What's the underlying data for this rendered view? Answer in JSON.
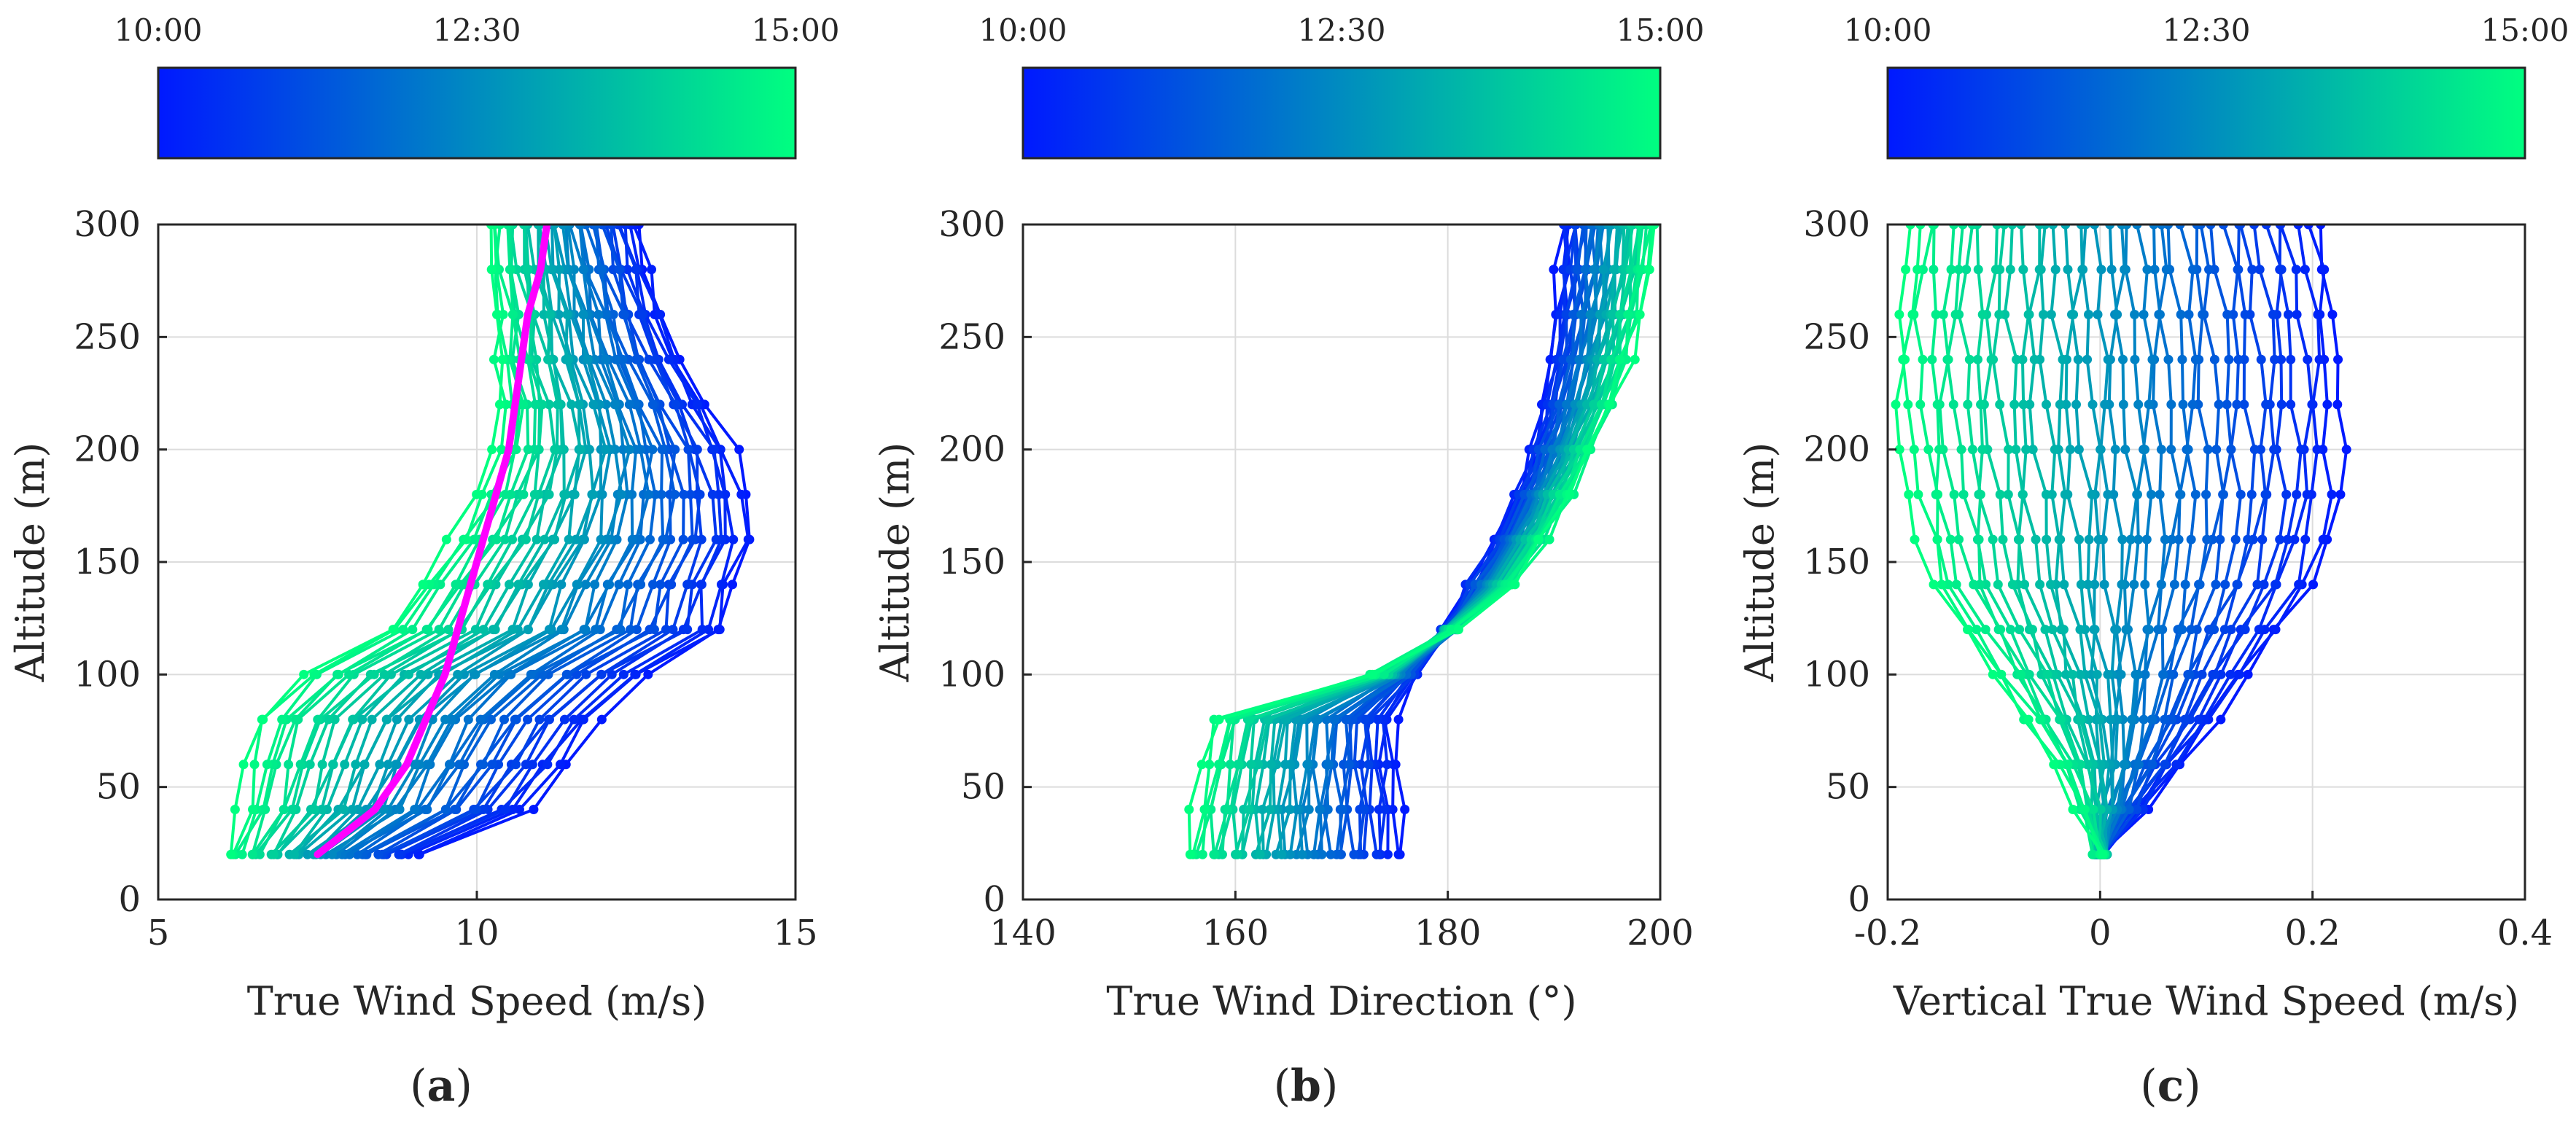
{
  "figure": {
    "colorbar": {
      "start_label": "10:00",
      "mid_label": "12:30",
      "end_label": "15:00",
      "color_start": "#0019ff",
      "color_end": "#00ff80"
    },
    "panels": [
      {
        "id": "a",
        "label_open": "(",
        "label_letter": "a",
        "label_close": ")"
      },
      {
        "id": "b",
        "label_open": "(",
        "label_letter": "b",
        "label_close": ")"
      },
      {
        "id": "c",
        "label_open": "(",
        "label_letter": "c",
        "label_close": ")"
      }
    ]
  },
  "chart_data": [
    {
      "type": "line",
      "panel": "a",
      "title": "",
      "xlabel": "True Wind Speed (m/s)",
      "ylabel": "Altitude (m)",
      "xlim": [
        5,
        15
      ],
      "ylim": [
        0,
        300
      ],
      "xticks": [
        "5",
        "10",
        "15"
      ],
      "yticks": [
        "0",
        "50",
        "100",
        "150",
        "200",
        "250",
        "300"
      ],
      "grid": true,
      "colorbar": {
        "label_start": "10:00",
        "label_mid": "12:30",
        "label_end": "15:00"
      },
      "altitudes": [
        20,
        40,
        60,
        80,
        100,
        120,
        140,
        160,
        180,
        200,
        220,
        240,
        260,
        280,
        300
      ],
      "profile_count": 40,
      "profile_time_range": [
        "10:00",
        "15:00"
      ],
      "profile_envelope": {
        "earliest": [
          9.1,
          10.8,
          11.4,
          11.9,
          12.7,
          13.9,
          14.0,
          14.3,
          14.2,
          14.0,
          13.6,
          13.2,
          12.9,
          12.7,
          12.5
        ],
        "latest": [
          6.1,
          6.3,
          6.4,
          6.6,
          7.3,
          8.6,
          9.1,
          9.6,
          10.0,
          10.3,
          10.4,
          10.3,
          10.3,
          10.2,
          10.2
        ]
      },
      "series": [
        {
          "name": "mean profile",
          "color": "#ff00ff",
          "x": [
            7.5,
            8.4,
            8.9,
            9.2,
            9.5,
            9.7,
            9.9,
            10.1,
            10.3,
            10.5,
            10.6,
            10.7,
            10.8,
            11.0,
            11.1
          ],
          "y": [
            20,
            40,
            60,
            80,
            100,
            120,
            140,
            160,
            180,
            200,
            220,
            240,
            260,
            280,
            300
          ]
        }
      ]
    },
    {
      "type": "line",
      "panel": "b",
      "title": "",
      "xlabel": "True Wind Direction (°)",
      "ylabel": "Altitude (m)",
      "xlim": [
        140,
        200
      ],
      "ylim": [
        0,
        300
      ],
      "xticks": [
        "140",
        "160",
        "180",
        "200"
      ],
      "yticks": [
        "0",
        "50",
        "100",
        "150",
        "200",
        "250",
        "300"
      ],
      "grid": true,
      "colorbar": {
        "label_start": "10:00",
        "label_mid": "12:30",
        "label_end": "15:00"
      },
      "altitudes": [
        20,
        40,
        60,
        80,
        100,
        120,
        140,
        160,
        180,
        200,
        220,
        240,
        260,
        280,
        300
      ],
      "profile_count": 40,
      "profile_time_range": [
        "10:00",
        "15:00"
      ],
      "profile_envelope": {
        "earliest": [
          175.5,
          175.4,
          175.1,
          175.0,
          177.0,
          180.0,
          182.0,
          184.5,
          186.5,
          188.0,
          189.0,
          189.8,
          190.3,
          190.6,
          190.8
        ],
        "latest": [
          155.5,
          156.2,
          157.2,
          158.2,
          173.0,
          180.5,
          186.0,
          189.0,
          191.5,
          193.5,
          195.5,
          197.0,
          198.0,
          198.8,
          199.3
        ]
      },
      "series": []
    },
    {
      "type": "line",
      "panel": "c",
      "title": "",
      "xlabel": "Vertical True Wind Speed (m/s)",
      "ylabel": "Altitude (m)",
      "xlim": [
        -0.2,
        0.4
      ],
      "ylim": [
        0,
        300
      ],
      "xticks": [
        "-0.2",
        "0",
        "0.2",
        "0.4"
      ],
      "yticks": [
        "0",
        "50",
        "100",
        "150",
        "200",
        "250",
        "300"
      ],
      "grid": true,
      "colorbar": {
        "label_start": "10:00",
        "label_mid": "12:30",
        "label_end": "15:00"
      },
      "altitudes": [
        20,
        40,
        60,
        80,
        100,
        120,
        140,
        160,
        180,
        200,
        220,
        240,
        260,
        280,
        300
      ],
      "profile_count": 40,
      "profile_time_range": [
        "10:00",
        "15:00"
      ],
      "profile_envelope": {
        "earliest": [
          0.0,
          0.04,
          0.075,
          0.11,
          0.14,
          0.17,
          0.2,
          0.215,
          0.225,
          0.225,
          0.225,
          0.225,
          0.22,
          0.215,
          0.205
        ],
        "latest": [
          0.0,
          -0.02,
          -0.04,
          -0.07,
          -0.1,
          -0.13,
          -0.16,
          -0.17,
          -0.18,
          -0.185,
          -0.19,
          -0.19,
          -0.19,
          -0.185,
          -0.18
        ]
      },
      "series": []
    }
  ]
}
